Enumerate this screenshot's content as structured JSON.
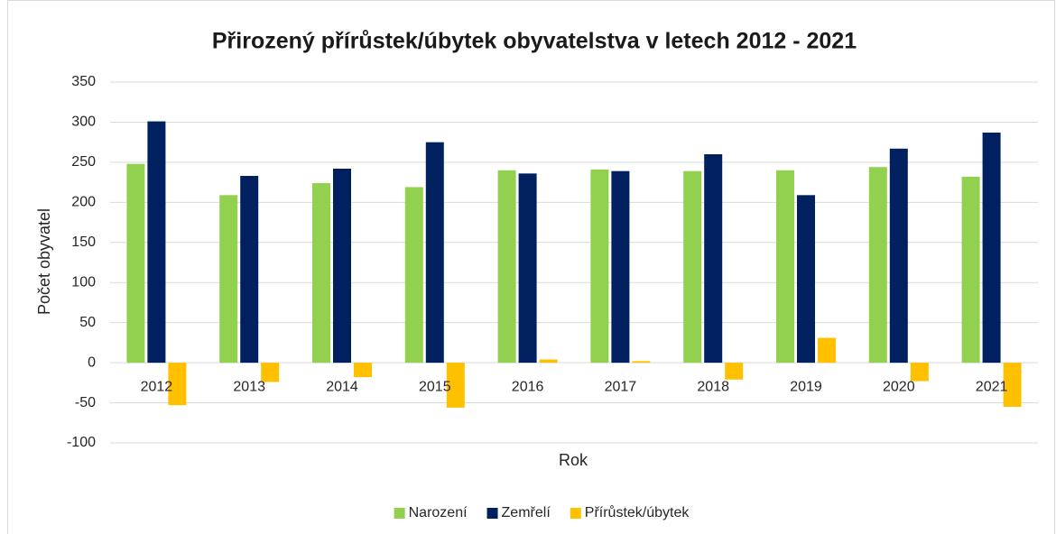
{
  "chart_data": {
    "type": "bar",
    "title": "Přirozený přírůstek/úbytek obyvatelstva v letech 2012 - 2021",
    "x_label": "Rok",
    "y_label": "Počet obyvatel",
    "categories": [
      "2012",
      "2013",
      "2014",
      "2015",
      "2016",
      "2017",
      "2018",
      "2019",
      "2020",
      "2021"
    ],
    "series": [
      {
        "name": "Narození",
        "color": "#92d050",
        "values": [
          248,
          209,
          224,
          219,
          240,
          241,
          239,
          240,
          244,
          232
        ]
      },
      {
        "name": "Zemřelí",
        "color": "#002060",
        "values": [
          301,
          233,
          242,
          275,
          236,
          239,
          260,
          209,
          267,
          287
        ]
      },
      {
        "name": "Přírůstek/úbytek",
        "color": "#ffc000",
        "values": [
          -53,
          -24,
          -18,
          -56,
          4,
          2,
          -21,
          31,
          -23,
          -55
        ]
      }
    ],
    "ylim": [
      -100,
      350
    ],
    "yticks": [
      -100,
      -50,
      0,
      50,
      100,
      150,
      200,
      250,
      300,
      350
    ],
    "grid": true,
    "legend": "bottom"
  }
}
